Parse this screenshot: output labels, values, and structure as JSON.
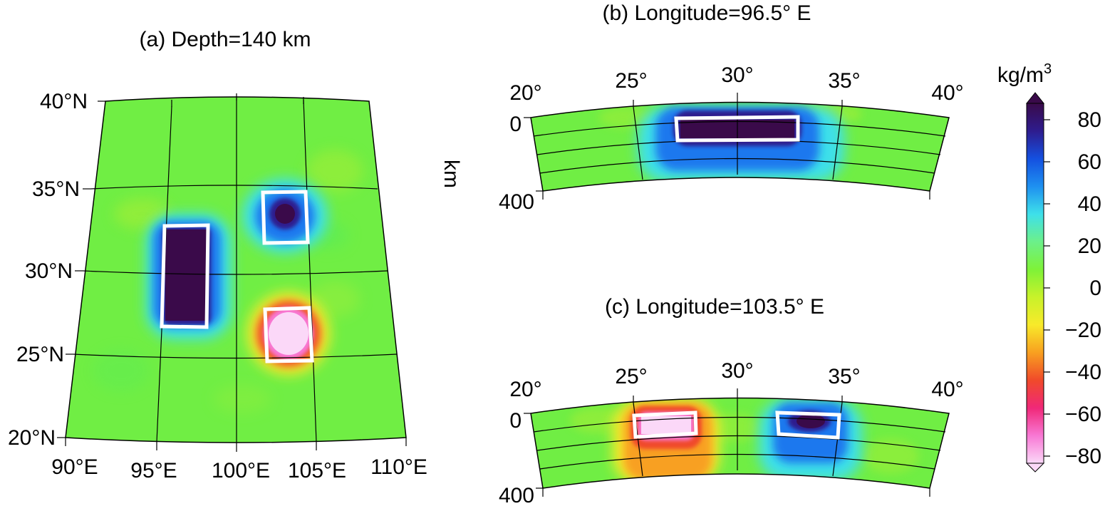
{
  "panel_a": {
    "title": "(a) Depth=140 km",
    "lat_labels": [
      "20°N",
      "25°N",
      "30°N",
      "35°N",
      "40°N"
    ],
    "lon_labels": [
      "90°E",
      "95°E",
      "100°E",
      "105°E",
      "110°E"
    ]
  },
  "panel_b": {
    "title": "(b) Longitude=96.5° E",
    "lat_labels": [
      "20°",
      "25°",
      "30°",
      "35°",
      "40°"
    ],
    "depth_labels": [
      "0",
      "400"
    ]
  },
  "panel_c": {
    "title": "(c) Longitude=103.5° E",
    "lat_labels": [
      "20°",
      "25°",
      "30°",
      "35°",
      "40°"
    ],
    "depth_labels": [
      "0",
      "400"
    ]
  },
  "depth_axis_label": "km",
  "colorbar": {
    "unit": "kg/m",
    "unit_sup": "3",
    "ticks": [
      "80",
      "60",
      "40",
      "20",
      "0",
      "−20",
      "−40",
      "−60",
      "−80"
    ],
    "colors": [
      "#3a0a4a",
      "#2e1c8e",
      "#1450e0",
      "#1e90f0",
      "#3ee0ea",
      "#6cf08a",
      "#7ef238",
      "#c8f22a",
      "#f8ea2a",
      "#f8a020",
      "#f04a2a",
      "#f02878",
      "#f878d4",
      "#fbd8f8"
    ]
  },
  "chart_data": [
    {
      "type": "heatmap",
      "title": "(a) Depth=140 km",
      "x_ticks": [
        "90°E",
        "95°E",
        "100°E",
        "105°E",
        "110°E"
      ],
      "y_ticks": [
        "20°N",
        "25°N",
        "30°N",
        "35°N",
        "40°N"
      ],
      "xlim": [
        90,
        110
      ],
      "ylim": [
        20,
        40
      ],
      "anomalies": [
        {
          "lon": [
            95.5,
            98.5
          ],
          "lat": [
            26.5,
            32.5
          ],
          "value": 80
        },
        {
          "lon": [
            102,
            105
          ],
          "lat": [
            32,
            35
          ],
          "value": 80
        },
        {
          "lon": [
            102,
            105
          ],
          "lat": [
            25,
            28
          ],
          "value": -80
        }
      ],
      "color_range": [
        -80,
        80
      ]
    },
    {
      "type": "heatmap",
      "title": "(b) Longitude=96.5° E",
      "x_ticks": [
        "20°",
        "25°",
        "30°",
        "35°",
        "40°"
      ],
      "y_ticks": [
        "0",
        "400"
      ],
      "xlim": [
        20,
        40
      ],
      "ylim": [
        0,
        400
      ],
      "anomalies": [
        {
          "lat": [
            26.5,
            32.5
          ],
          "depth": [
            0,
            100
          ],
          "value": 80
        }
      ],
      "color_range": [
        -80,
        80
      ]
    },
    {
      "type": "heatmap",
      "title": "(c) Longitude=103.5° E",
      "x_ticks": [
        "20°",
        "25°",
        "30°",
        "35°",
        "40°"
      ],
      "y_ticks": [
        "0",
        "400"
      ],
      "xlim": [
        20,
        40
      ],
      "ylim": [
        0,
        400
      ],
      "anomalies": [
        {
          "lat": [
            25,
            28
          ],
          "depth": [
            0,
            100
          ],
          "value": -80
        },
        {
          "lat": [
            32,
            35
          ],
          "depth": [
            0,
            100
          ],
          "value": 80
        }
      ],
      "color_range": [
        -80,
        80
      ]
    }
  ]
}
